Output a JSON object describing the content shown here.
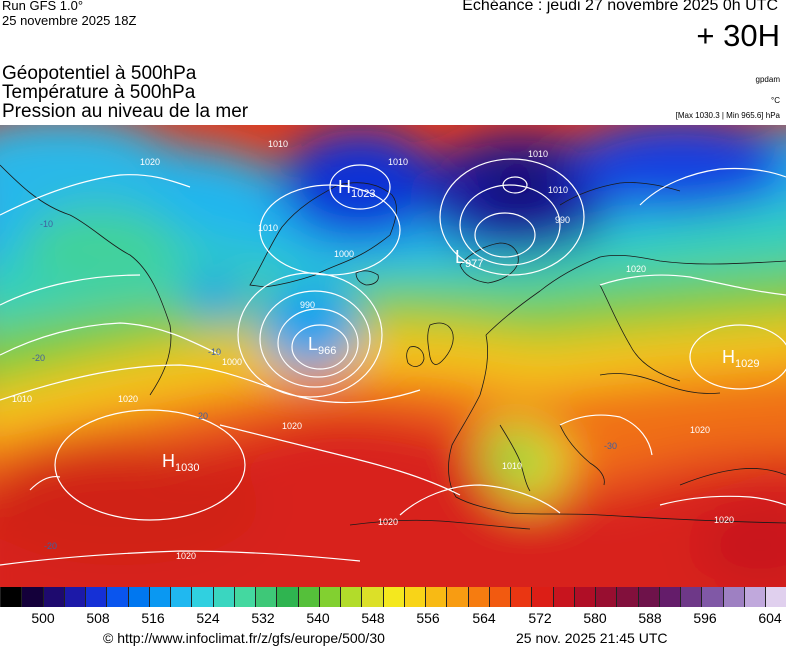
{
  "header": {
    "run": "Run GFS 1.0°",
    "run_date": "25 novembre 2025 18Z",
    "valid": "Echéance : jeudi 27 novembre 2025 0h UTC",
    "offset": "+ 30H"
  },
  "variables": [
    "Géopotentiel à 500hPa",
    "Température à 500hPa",
    "Pression au niveau de la mer"
  ],
  "units": {
    "geopotential": "gpdam",
    "temperature": "°C",
    "pressure": "[Max 1030.3 | Min 965.6] hPa"
  },
  "map": {
    "pressure_centers": [
      {
        "type": "H",
        "value": "1023"
      },
      {
        "type": "L",
        "value": "977"
      },
      {
        "type": "L",
        "value": "966"
      },
      {
        "type": "H",
        "value": "1029"
      },
      {
        "type": "H",
        "value": "1030"
      }
    ],
    "isobar_labels": [
      "1020",
      "1010",
      "1010",
      "1000",
      "990",
      "1010",
      "1010",
      "1010",
      "1000",
      "990",
      "1010",
      "1020",
      "1020",
      "1010",
      "1020",
      "1020",
      "1020",
      "1020",
      "1020"
    ],
    "temp_labels": [
      "-20",
      "-10",
      "20",
      "-10",
      "-20",
      "-30"
    ]
  },
  "scale": {
    "colors": [
      "#000000",
      "#14003a",
      "#1e0a6e",
      "#1c19a8",
      "#1530d6",
      "#0a55ee",
      "#0077f0",
      "#0a98f2",
      "#20b8f0",
      "#30d0e0",
      "#3ad6c0",
      "#44d8a0",
      "#3ec878",
      "#2fb450",
      "#55c03a",
      "#82d030",
      "#b2dc2a",
      "#dce028",
      "#f4e81e",
      "#f8d418",
      "#f8ba14",
      "#f89c12",
      "#f67c10",
      "#f25a10",
      "#ea3612",
      "#dc1e16",
      "#c8141e",
      "#b00e26",
      "#980e30",
      "#82103c",
      "#6e124a",
      "#641c6a",
      "#6e3888",
      "#8058a6",
      "#9e80c2",
      "#c0a8dc",
      "#e0d0ee"
    ],
    "ticks": [
      "500",
      "508",
      "516",
      "524",
      "532",
      "540",
      "548",
      "556",
      "564",
      "572",
      "580",
      "588",
      "596",
      "604"
    ],
    "tick_positions": [
      0.055,
      0.16,
      0.265,
      0.37,
      0.475,
      0.58,
      0.685,
      0.79,
      0.896,
      1.0,
      1.105,
      1.21,
      1.315,
      1.42
    ]
  },
  "footer": {
    "credit": "© http://www.infoclimat.fr/z/gfs/europe/500/30",
    "timestamp": "25 nov. 2025 21:45 UTC"
  }
}
